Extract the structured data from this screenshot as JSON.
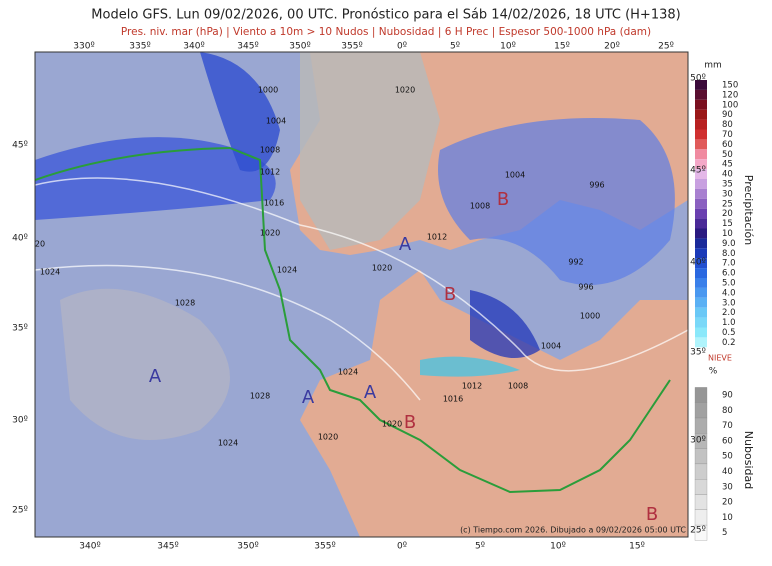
{
  "header": {
    "title": "Modelo GFS. Lun 09/02/2026, 00 UTC. Pronóstico para el Sáb 14/02/2026, 18 UTC (H+138)",
    "subtitle": "Pres. niv. mar (hPa) | Viento a 10m > 10 Nudos | Nubosidad | 6 H Prec | Espesor 500-1000 hPa (dam)"
  },
  "map": {
    "top_lon_labels": [
      "330º",
      "335º",
      "340º",
      "345º",
      "350º",
      "355º",
      "0º",
      "5º",
      "10º",
      "15º",
      "20º",
      "25º"
    ],
    "bottom_lon_labels": [
      "340º",
      "345º",
      "350º",
      "355º",
      "0º",
      "5º",
      "10º",
      "15º"
    ],
    "left_lat_labels": [
      "45º",
      "40º",
      "35º",
      "30º",
      "25º"
    ],
    "right_lat_labels": [
      "50º",
      "45º",
      "40º",
      "35º",
      "30º",
      "25º"
    ],
    "isobar_labels": [
      "1000",
      "1004",
      "1008",
      "1012",
      "1016",
      "1020",
      "1024",
      "1024",
      "1028",
      "1020",
      "1020",
      "1012",
      "1008",
      "1004",
      "996",
      "992",
      "996",
      "1000",
      "1004",
      "1008",
      "1012",
      "1016",
      "1024",
      "1028",
      "1024",
      "1020",
      "1020",
      "20"
    ],
    "pressure_centers": [
      "A",
      "A",
      "A",
      "A",
      "B",
      "B",
      "B",
      "B"
    ],
    "credit": "(c) Tiempo.com 2026. Dibujado a 09/02/2026 05:00 UTC"
  },
  "legend": {
    "precip_unit": "mm",
    "precip_title": "Precipitación",
    "precip_labels": [
      "150",
      "120",
      "100",
      "90",
      "80",
      "70",
      "60",
      "50",
      "45",
      "40",
      "35",
      "30",
      "25",
      "20",
      "15",
      "10",
      "9.0",
      "8.0",
      "7.0",
      "6.0",
      "5.0",
      "4.0",
      "3.0",
      "2.0",
      "1.0",
      "0.5",
      "0.2"
    ],
    "snow_label": "NIEVE",
    "cloud_unit": "%",
    "cloud_title": "Nubosidad",
    "cloud_labels": [
      "90",
      "80",
      "70",
      "60",
      "50",
      "40",
      "30",
      "20",
      "10",
      "5"
    ]
  }
}
